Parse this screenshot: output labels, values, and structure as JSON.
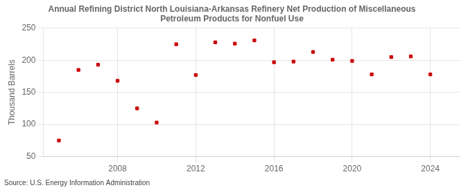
{
  "chart_data": {
    "type": "scatter",
    "title": "Annual Refining District North Louisiana-Arkansas Refinery Net Production of Miscellaneous\nPetroleum Products for Nonfuel Use",
    "ylabel": "Thousand Barrels",
    "source": "Source: U.S. Energy Information Administration",
    "x": [
      2005,
      2006,
      2007,
      2008,
      2009,
      2010,
      2011,
      2012,
      2013,
      2014,
      2015,
      2016,
      2017,
      2018,
      2019,
      2020,
      2021,
      2022,
      2023,
      2024
    ],
    "values": [
      75,
      185,
      193,
      168,
      125,
      103,
      225,
      177,
      228,
      226,
      231,
      197,
      198,
      213,
      201,
      199,
      178,
      205,
      206,
      178
    ],
    "color": "#CC0000",
    "marker": "square",
    "xlim": [
      2004.2,
      2025.5
    ],
    "xticks": [
      2008,
      2012,
      2016,
      2020,
      2024
    ],
    "ylim": [
      50,
      250
    ],
    "yticks": [
      50,
      100,
      150,
      200,
      250
    ],
    "grid": true
  }
}
